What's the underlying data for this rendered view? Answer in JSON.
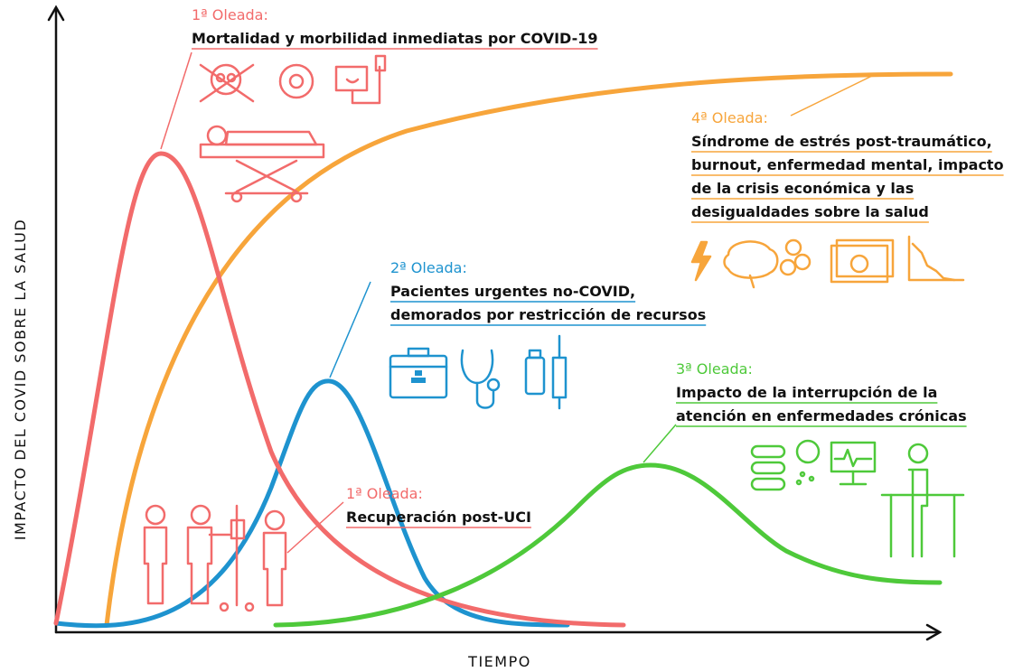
{
  "y_axis_label": "IMPACTO DEL COVID SOBRE LA SALUD",
  "x_axis_label": "TIEMPO",
  "annotations": [
    {
      "label": "1ª Oleada:",
      "lines": [
        "Mortalidad y morbilidad inmediatas por COVID-19"
      ]
    },
    {
      "label": "4ª Oleada:",
      "lines": [
        "Síndrome de estrés post-traumático,",
        "burnout, enfermedad mental, impacto",
        "de la crisis económica y las",
        "desigualdades sobre la salud"
      ]
    },
    {
      "label": "2ª Oleada:",
      "lines": [
        "Pacientes urgentes no-COVID,",
        "demorados por restricción de recursos"
      ]
    },
    {
      "label": "3ª Oleada:",
      "lines": [
        "Impacto de la interrupción de la",
        "atención en enfermedades crónicas"
      ]
    },
    {
      "label": "1ª Oleada:",
      "lines": [
        "Recuperación post-UCI"
      ]
    }
  ]
}
